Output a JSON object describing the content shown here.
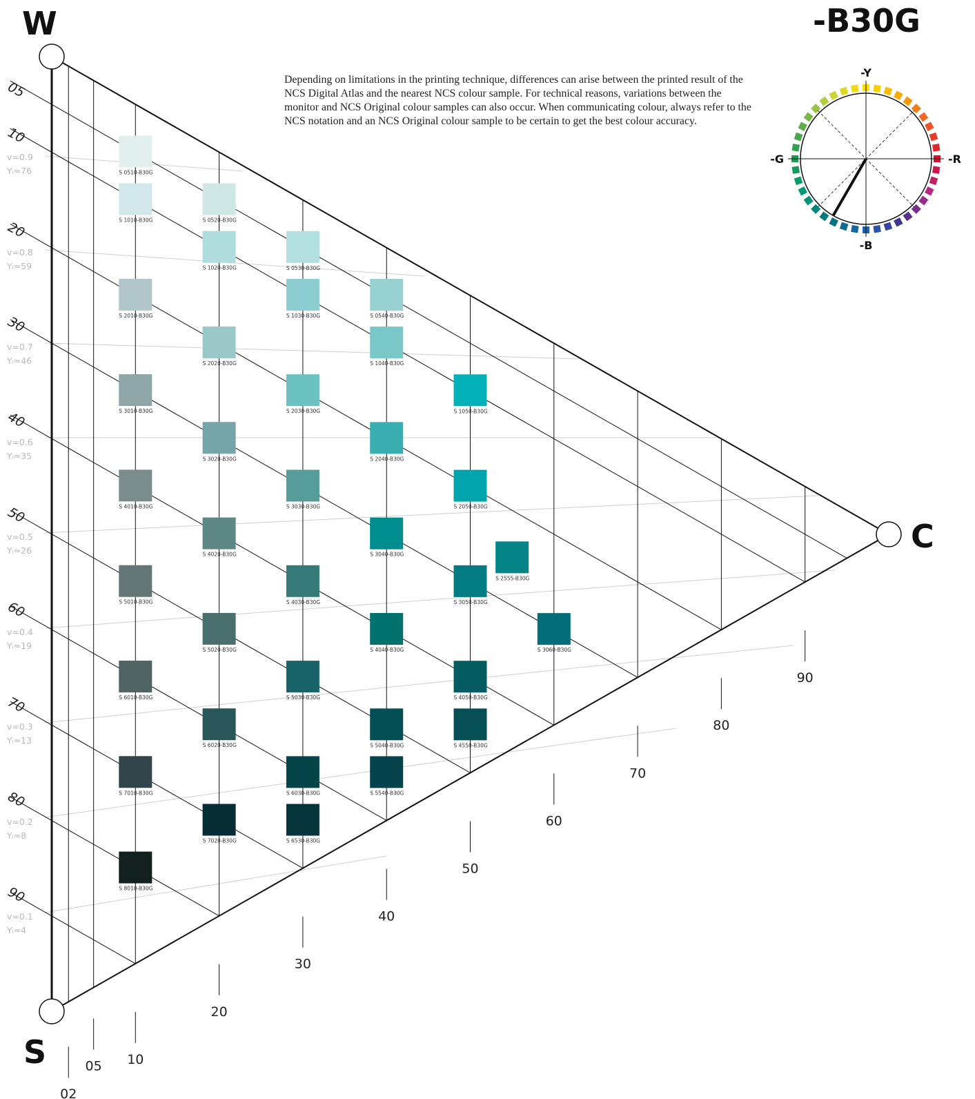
{
  "hue_title": "-B30G",
  "corners": {
    "white": "W",
    "black": "S",
    "chroma": "C"
  },
  "disclaimer": "Depending on limitations in the printing technique, differences can arise between the printed result of the NCS Digital Atlas and the nearest NCS colour sample. For technical reasons, variations between the monitor and NCS Original colour samples can also occur. When communicating colour, always refer to the NCS notation and an NCS Original colour sample to be certain to get the best colour accuracy.",
  "blackness_ticks": [
    "05",
    "10",
    "20",
    "30",
    "40",
    "50",
    "60",
    "70",
    "80",
    "90"
  ],
  "value_labels": [
    {
      "v": "v=0.9",
      "y": "Yₗ≈76"
    },
    {
      "v": "v=0.8",
      "y": "Yₗ≈59"
    },
    {
      "v": "v=0.7",
      "y": "Yₗ≈46"
    },
    {
      "v": "v=0.6",
      "y": "Yₗ≈35"
    },
    {
      "v": "v=0.5",
      "y": "Yₗ≈26"
    },
    {
      "v": "v=0.4",
      "y": "Yₗ≈19"
    },
    {
      "v": "v=0.3",
      "y": "Yₗ≈13"
    },
    {
      "v": "v=0.2",
      "y": "Yₗ≈8"
    },
    {
      "v": "v=0.1",
      "y": "Yₗ≈4"
    }
  ],
  "chromaticness_ticks": [
    "02",
    "05",
    "10",
    "20",
    "30",
    "40",
    "50",
    "60",
    "70",
    "80",
    "90"
  ],
  "wheel": {
    "top": "-Y",
    "bottom": "-B",
    "left": "-G",
    "right": "-R"
  },
  "swatches": [
    {
      "label": "S 0510-B30G",
      "s": 5,
      "c": 10,
      "color": "#e1f0ee"
    },
    {
      "label": "S 1010-B30G",
      "s": 10,
      "c": 10,
      "color": "#d3e8ea"
    },
    {
      "label": "S 2010-B30G",
      "s": 20,
      "c": 10,
      "color": "#b0c6c9"
    },
    {
      "label": "S 3010-B30G",
      "s": 30,
      "c": 10,
      "color": "#8ea6a8"
    },
    {
      "label": "S 4010-B30G",
      "s": 40,
      "c": 10,
      "color": "#7a8c8b"
    },
    {
      "label": "S 5010-B30G",
      "s": 50,
      "c": 10,
      "color": "#647675"
    },
    {
      "label": "S 6010-B30G",
      "s": 60,
      "c": 10,
      "color": "#506464"
    },
    {
      "label": "S 7010-B30G",
      "s": 70,
      "c": 10,
      "color": "#32454a"
    },
    {
      "label": "S 8010-B30G",
      "s": 80,
      "c": 10,
      "color": "#13211e"
    },
    {
      "label": "S 0520-B30G",
      "s": 5,
      "c": 20,
      "color": "#cfe8e6"
    },
    {
      "label": "S 1020-B30G",
      "s": 10,
      "c": 20,
      "color": "#afdcdd"
    },
    {
      "label": "S 2020-B30G",
      "s": 20,
      "c": 20,
      "color": "#9ac8c9"
    },
    {
      "label": "S 3020-B30G",
      "s": 30,
      "c": 20,
      "color": "#76a5a9"
    },
    {
      "label": "S 4020-B30G",
      "s": 40,
      "c": 20,
      "color": "#5d8886"
    },
    {
      "label": "S 5020-B30G",
      "s": 50,
      "c": 20,
      "color": "#4a706d"
    },
    {
      "label": "S 6020-B30G",
      "s": 60,
      "c": 20,
      "color": "#295659"
    },
    {
      "label": "S 7020-B30G",
      "s": 70,
      "c": 20,
      "color": "#052d33"
    },
    {
      "label": "S 0530-B30G",
      "s": 5,
      "c": 30,
      "color": "#b2dfe0"
    },
    {
      "label": "S 1030-B30G",
      "s": 10,
      "c": 30,
      "color": "#8bcdd1"
    },
    {
      "label": "S 2030-B30G",
      "s": 20,
      "c": 30,
      "color": "#6cc2c1"
    },
    {
      "label": "S 3030-B30G",
      "s": 30,
      "c": 30,
      "color": "#569c9b"
    },
    {
      "label": "S 4030-B30G",
      "s": 40,
      "c": 30,
      "color": "#357a79"
    },
    {
      "label": "S 5030-B30G",
      "s": 50,
      "c": 30,
      "color": "#19636a"
    },
    {
      "label": "S 6030-B30G",
      "s": 60,
      "c": 30,
      "color": "#054549"
    },
    {
      "label": "S 6530-B30G",
      "s": 65,
      "c": 30,
      "color": "#05343b"
    },
    {
      "label": "S 0540-B30G",
      "s": 5,
      "c": 40,
      "color": "#97d1d2"
    },
    {
      "label": "S 1040-B30G",
      "s": 10,
      "c": 40,
      "color": "#79c7c7"
    },
    {
      "label": "S 2040-B30G",
      "s": 20,
      "c": 40,
      "color": "#3aafb1"
    },
    {
      "label": "S 3040-B30G",
      "s": 30,
      "c": 40,
      "color": "#008d90"
    },
    {
      "label": "S 4040-B30G",
      "s": 40,
      "c": 40,
      "color": "#03726f"
    },
    {
      "label": "S 5040-B30G",
      "s": 50,
      "c": 40,
      "color": "#044f55"
    },
    {
      "label": "S 5540-B30G",
      "s": 55,
      "c": 40,
      "color": "#05444c"
    },
    {
      "label": "S 1050-B30G",
      "s": 10,
      "c": 50,
      "color": "#03b2b9"
    },
    {
      "label": "S 2050-B30G",
      "s": 20,
      "c": 50,
      "color": "#02a5ad"
    },
    {
      "label": "S 3050-B30G",
      "s": 30,
      "c": 50,
      "color": "#037b83"
    },
    {
      "label": "S 4050-B30G",
      "s": 40,
      "c": 50,
      "color": "#055c61"
    },
    {
      "label": "S 4550-B30G",
      "s": 45,
      "c": 50,
      "color": "#054f55"
    },
    {
      "label": "S 2555-B30G",
      "s": 25,
      "c": 55,
      "color": "#038587"
    },
    {
      "label": "S 3060-B30G",
      "s": 30,
      "c": 60,
      "color": "#036d78"
    }
  ]
}
